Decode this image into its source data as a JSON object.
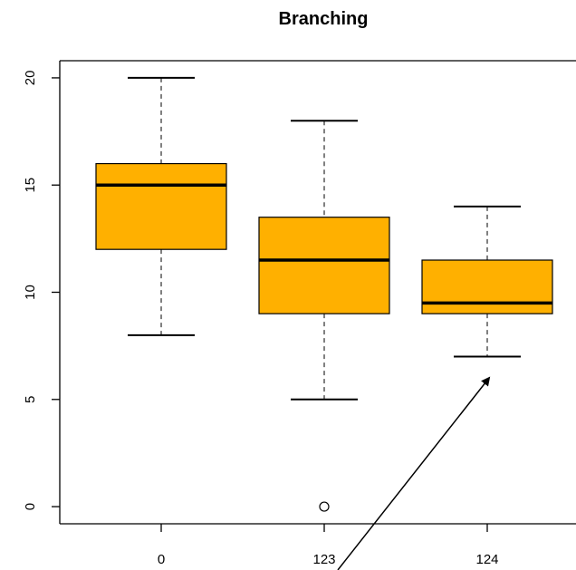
{
  "chart_data": {
    "type": "box",
    "title": "Branching",
    "xlabel": "",
    "ylabel": "",
    "ylim": [
      -0.8,
      20.8
    ],
    "yticks": [
      0,
      5,
      10,
      15,
      20
    ],
    "categories": [
      "0",
      "123",
      "124"
    ],
    "boxes": [
      {
        "category": "0",
        "whisker_low": 8,
        "q1": 12,
        "median": 15,
        "q3": 16,
        "whisker_high": 20,
        "outliers": []
      },
      {
        "category": "123",
        "whisker_low": 5,
        "q1": 9,
        "median": 11.5,
        "q3": 13.5,
        "whisker_high": 18,
        "outliers": [
          0
        ]
      },
      {
        "category": "124",
        "whisker_low": 7,
        "q1": 9,
        "median": 9.5,
        "q3": 11.5,
        "whisker_high": 14,
        "outliers": []
      }
    ],
    "box_color": "#FFB000",
    "median_color": "#000000",
    "grid": false,
    "annotations": [
      {
        "type": "arrow",
        "from_category": "123",
        "from_y": -2.2,
        "to_category": "124",
        "to_y": 6.0
      }
    ]
  }
}
